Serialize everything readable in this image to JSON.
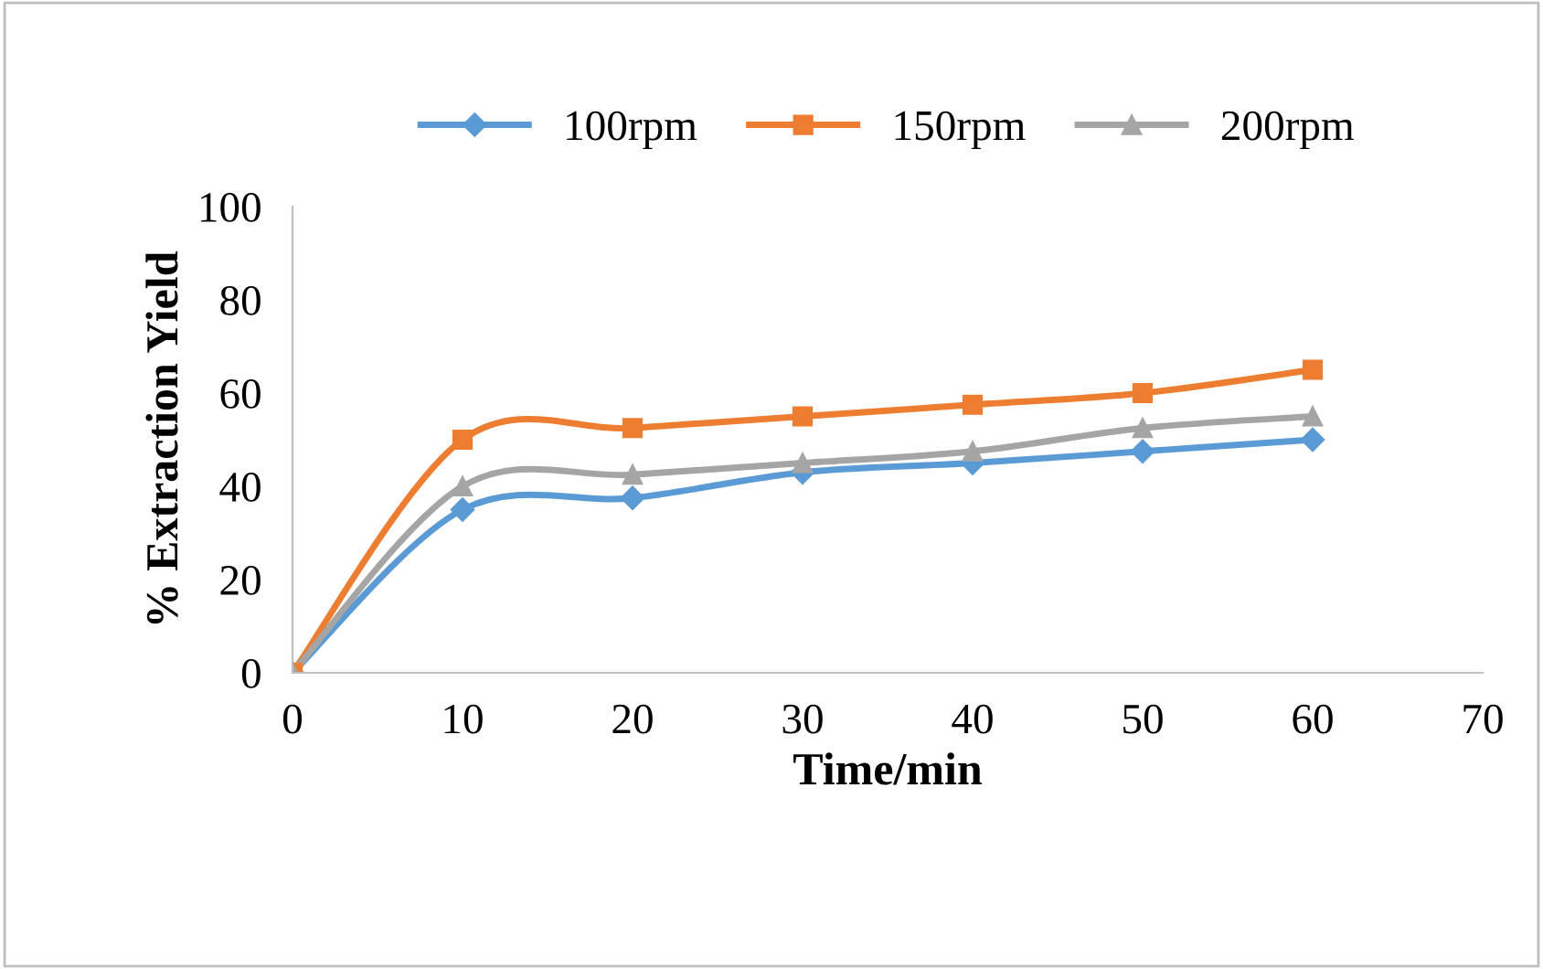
{
  "chart_data": {
    "type": "line",
    "xlabel": "Time/min",
    "ylabel": "% Extraction Yield",
    "x": [
      0,
      10,
      20,
      30,
      40,
      50,
      60
    ],
    "series": [
      {
        "name": "100rpm",
        "color": "#5b9bd5",
        "marker": "diamond",
        "values": [
          0,
          35,
          37.5,
          43,
          45,
          47.5,
          50
        ]
      },
      {
        "name": "150rpm",
        "color": "#ed7d31",
        "marker": "square",
        "values": [
          0,
          50,
          52.5,
          55,
          57.5,
          60,
          65
        ]
      },
      {
        "name": "200rpm",
        "color": "#a5a5a5",
        "marker": "triangle",
        "values": [
          0,
          40,
          42.5,
          45,
          47.5,
          52.5,
          55
        ]
      }
    ],
    "xlim": [
      0,
      70
    ],
    "xticks": [
      0,
      10,
      20,
      30,
      40,
      50,
      60,
      70
    ],
    "ylim": [
      0,
      100
    ],
    "yticks": [
      0,
      20,
      40,
      60,
      80,
      100
    ],
    "grid": false,
    "legend": "top",
    "line_style": "solid"
  }
}
